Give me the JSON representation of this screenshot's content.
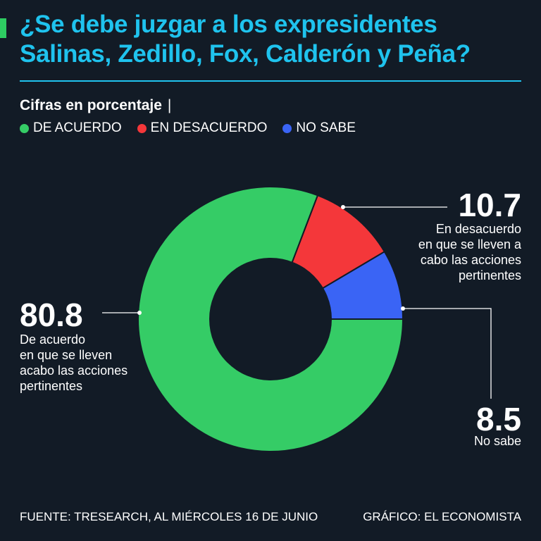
{
  "header": {
    "title": "¿Se debe juzgar a los expresidentes Salinas, Zedillo, Fox, Calderón y Peña?",
    "subtitle": "Cifras en porcentaje",
    "separator": "|",
    "accent_color": "#2ecc62",
    "title_color": "#1fc3ee"
  },
  "legend": [
    {
      "label": "DE ACUERDO",
      "color": "#35cc66"
    },
    {
      "label": "EN DESACUERDO",
      "color": "#f4373a"
    },
    {
      "label": "NO SABE",
      "color": "#3a64f5"
    }
  ],
  "chart_data": {
    "type": "pie",
    "variant": "donut",
    "title": "¿Se debe juzgar a los expresidentes Salinas, Zedillo, Fox, Calderón y Peña?",
    "subtitle": "Cifras en porcentaje",
    "legend_position": "top-left",
    "slices": [
      {
        "name": "DE ACUERDO",
        "value": 80.8,
        "value_label": "80.8",
        "description": "De acuerdo en que se lleven acabo las acciones pertinentes",
        "description_lines": [
          "De acuerdo",
          "en que se lleven",
          "acabo las acciones",
          "pertinentes"
        ],
        "color": "#35cc66"
      },
      {
        "name": "EN DESACUERDO",
        "value": 10.7,
        "value_label": "10.7",
        "description": "En desacuerdo en que se lleven a cabo las acciones pertinentes",
        "description_lines": [
          "En desacuerdo",
          "en que se lleven a",
          "cabo las acciones",
          "pertinentes"
        ],
        "color": "#f4373a"
      },
      {
        "name": "NO SABE",
        "value": 8.5,
        "value_label": "8.5",
        "description": "No sabe",
        "description_lines": [
          "No sabe"
        ],
        "color": "#3a64f5"
      }
    ]
  },
  "footer": {
    "source": "FUENTE: TRESEARCH, AL MIÉRCOLES 16 DE JUNIO",
    "credit": "GRÁFICO: EL ECONOMISTA"
  }
}
